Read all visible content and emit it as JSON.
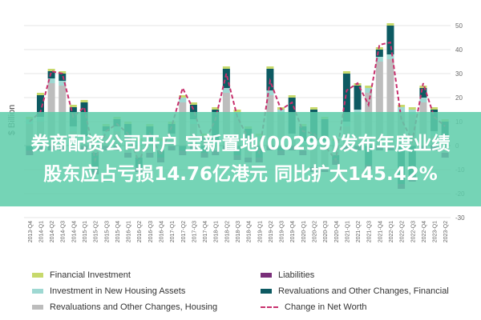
{
  "banner": {
    "line1": "券商配资公司开户 宝新置地(00299)发布年度业绩",
    "line2": "股东应占亏损14.76亿港元 同比扩大145.42%"
  },
  "colors": {
    "financial_investment": "#c7d96c",
    "liabilities": "#7a2f7a",
    "investment_new_housing": "#9ed8d2",
    "revaluations_financial": "#0d5a62",
    "revaluations_housing": "#bdbdbd",
    "change_net_worth": "#c8306d",
    "banner": "#5ecdaa"
  },
  "legend": [
    {
      "label": "Financial Investment",
      "color": "#c7d96c",
      "kind": "swatch"
    },
    {
      "label": "Liabilities",
      "color": "#7a2f7a",
      "kind": "swatch"
    },
    {
      "label": "Investment in New Housing Assets",
      "color": "#9ed8d2",
      "kind": "swatch"
    },
    {
      "label": "Revaluations and Other Changes, Financial",
      "color": "#0d5a62",
      "kind": "swatch"
    },
    {
      "label": "Revaluations and Other Changes, Housing",
      "color": "#bdbdbd",
      "kind": "swatch"
    },
    {
      "label": "Change in Net Worth",
      "color": "#c8306d",
      "kind": "dash"
    }
  ],
  "chart_data": {
    "type": "bar",
    "stacked": true,
    "ylabel": "$ Billion",
    "ylim": [
      -30,
      50
    ],
    "yticks": [
      -30,
      -20,
      -10,
      0,
      10,
      20,
      30,
      40,
      50
    ],
    "y_axis_position": "right",
    "grid": true,
    "categories": [
      "2013-Q4",
      "2014-Q1",
      "2014-Q2",
      "2014-Q3",
      "2014-Q4",
      "2015-Q1",
      "2015-Q2",
      "2015-Q3",
      "2015-Q4",
      "2016-Q1",
      "2016-Q2",
      "2016-Q3",
      "2016-Q4",
      "2017-Q1",
      "2017-Q2",
      "2017-Q3",
      "2017-Q4",
      "2018-Q1",
      "2018-Q2",
      "2018-Q3",
      "2018-Q4",
      "2019-Q1",
      "2019-Q2",
      "2019-Q3",
      "2019-Q4",
      "2020-Q1",
      "2020-Q2",
      "2020-Q3",
      "2020-Q4",
      "2021-Q1",
      "2021-Q2",
      "2021-Q3",
      "2021-Q4",
      "2022-Q1",
      "2022-Q2",
      "2022-Q3",
      "2022-Q4",
      "2023-Q1",
      "2023-Q2"
    ],
    "series": [
      {
        "name": "Revaluations and Other Changes, Housing",
        "type": "bar",
        "values": [
          9,
          10,
          26,
          25,
          6,
          2,
          -3,
          4,
          6,
          -3,
          -5,
          -3,
          -2,
          3,
          18,
          9,
          2,
          -2,
          22,
          12,
          -5,
          2,
          21,
          13,
          3,
          -2,
          -9,
          -9,
          -4,
          8,
          13,
          22,
          35,
          36,
          14,
          13,
          18,
          4,
          -3
        ]
      },
      {
        "name": "Investment in New Housing Assets",
        "type": "bar",
        "values": [
          2,
          2,
          2,
          2,
          2,
          2,
          2,
          2,
          2,
          2,
          2,
          2,
          2,
          2,
          2,
          2,
          2,
          2,
          2,
          2,
          2,
          2,
          2,
          2,
          2,
          2,
          2,
          2,
          2,
          2,
          2,
          2,
          2,
          2,
          2,
          2,
          2,
          2,
          2
        ]
      },
      {
        "name": "Revaluations and Other Changes, Financial",
        "type": "bar",
        "values": [
          -2,
          9,
          3,
          3,
          8,
          14,
          -7,
          2,
          3,
          7,
          -4,
          6,
          -3,
          4,
          -2,
          6,
          -3,
          13,
          8,
          -4,
          5,
          -5,
          9,
          -2,
          15,
          6,
          13,
          9,
          -2,
          20,
          10,
          -8,
          3,
          12,
          -16,
          -13,
          4,
          9,
          8
        ]
      },
      {
        "name": "Financial Investment",
        "type": "bar",
        "values": [
          1,
          1,
          1,
          1,
          1,
          1,
          1,
          1,
          1,
          1,
          1,
          1,
          1,
          1,
          1,
          1,
          1,
          1,
          1,
          1,
          1,
          1,
          1,
          1,
          1,
          1,
          1,
          1,
          1,
          1,
          1,
          1,
          1,
          1,
          1,
          1,
          1,
          1,
          1
        ]
      },
      {
        "name": "Liabilities",
        "type": "bar",
        "values": [
          -2,
          -2,
          -2,
          -2,
          -2,
          -2,
          -2,
          -2,
          -2,
          -2,
          -2,
          -2,
          -2,
          -2,
          -2,
          -2,
          -2,
          -2,
          -2,
          -2,
          -2,
          -2,
          -2,
          -2,
          -2,
          -2,
          -2,
          -2,
          -2,
          -2,
          -2,
          -2,
          -2,
          -2,
          -2,
          -2,
          -2,
          -2,
          -2
        ]
      },
      {
        "name": "Change in Net Worth",
        "type": "line",
        "values": [
          10,
          14,
          31,
          30,
          12,
          16,
          -6,
          6,
          9,
          5,
          -7,
          5,
          -4,
          8,
          24,
          15,
          1,
          11,
          30,
          12,
          3,
          -3,
          27,
          15,
          18,
          6,
          5,
          0,
          -6,
          23,
          26,
          17,
          42,
          43,
          11,
          2,
          26,
          12,
          8
        ]
      }
    ]
  }
}
